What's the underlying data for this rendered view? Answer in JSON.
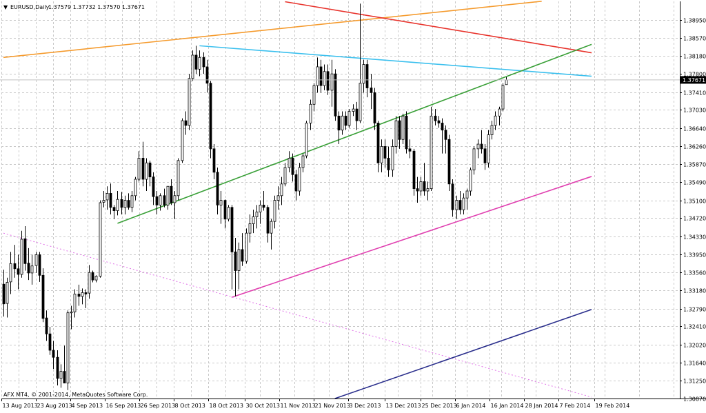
{
  "chart_data": {
    "type": "candlestick",
    "symbol_header": {
      "arrow": "▼",
      "label": "EURUSD,Daily",
      "ohlc": "1.37579 1.37732 1.37570 1.37671"
    },
    "copyright": "AFX MT4, © 2001-2014, MetaQuotes Software Corp.",
    "y_ticks": [
      "1.38950",
      "1.38570",
      "1.38180",
      "1.37800",
      "1.37410",
      "1.37030",
      "1.36640",
      "1.36260",
      "1.35870",
      "1.35490",
      "1.35100",
      "1.34720",
      "1.34330",
      "1.33950",
      "1.33560",
      "1.33180",
      "1.32790",
      "1.32410",
      "1.32020",
      "1.31640",
      "1.31250",
      "1.30870"
    ],
    "current_price_label": "1.37671",
    "current_price": 1.37671,
    "ylim": [
      1.3087,
      1.3934
    ],
    "x_ticks": [
      "13 Aug 2013",
      "23 Aug 2013",
      "4 Sep 2013",
      "16 Sep 2013",
      "26 Sep 2013",
      "8 Oct 2013",
      "18 Oct 2013",
      "30 Oct 2013",
      "11 Nov 2013",
      "21 Nov 2013",
      "3 Dec 2013",
      "13 Dec 2013",
      "25 Dec 2013",
      "6 Jan 2014",
      "16 Jan 2014",
      "28 Jan 2014",
      "7 Feb 2014",
      "19 Feb 2014"
    ],
    "grid": true,
    "colors": {
      "background": "#ffffff",
      "grid": "#c8c8c8",
      "bull_candle": "#ffffff",
      "bear_candle": "#000000",
      "candle_outline": "#000000",
      "orange_trendline": "#f59b2e",
      "red_trendline": "#e8332c",
      "cyan_trendline": "#3cc0ee",
      "green_trendline": "#3aa038",
      "magenta_trendline": "#e040b0",
      "violet_dotted_trendline": "#e070e8",
      "navy_trendline": "#2a2e8c",
      "price_line": "#c0c0c0",
      "price_label_bg": "#000000"
    },
    "trendlines": [
      {
        "name": "orange-trendline",
        "color_key": "orange_trendline",
        "dash": false,
        "from": [
          0,
          1.3815
        ],
        "to": [
          151,
          1.3935
        ]
      },
      {
        "name": "red-trendline",
        "color_key": "red_trendline",
        "dash": false,
        "from": [
          79,
          1.3934
        ],
        "to": [
          165,
          1.3825
        ]
      },
      {
        "name": "cyan-trendline",
        "color_key": "cyan_trendline",
        "dash": false,
        "from": [
          55,
          1.384
        ],
        "to": [
          165,
          1.3775
        ]
      },
      {
        "name": "green-trendline",
        "color_key": "green_trendline",
        "dash": false,
        "from": [
          32,
          1.3461
        ],
        "to": [
          165,
          1.3843
        ]
      },
      {
        "name": "magenta-trendline",
        "color_key": "magenta_trendline",
        "dash": false,
        "from": [
          64,
          1.3303
        ],
        "to": [
          165,
          1.3561
        ]
      },
      {
        "name": "violet-dotted-trendline",
        "color_key": "violet_dotted_trendline",
        "dash": true,
        "from": [
          0,
          1.344
        ],
        "to": [
          165,
          1.309
        ]
      },
      {
        "name": "navy-trendline",
        "color_key": "navy_trendline",
        "dash": false,
        "from": [
          93,
          1.3087
        ],
        "to": [
          165,
          1.3277
        ]
      }
    ],
    "candles": [
      [
        1.3331,
        1.3362,
        1.3262,
        1.3289
      ],
      [
        1.329,
        1.3345,
        1.326,
        1.3335
      ],
      [
        1.3336,
        1.34,
        1.331,
        1.3375
      ],
      [
        1.3375,
        1.3415,
        1.3345,
        1.3364
      ],
      [
        1.3364,
        1.3394,
        1.332,
        1.3352
      ],
      [
        1.3352,
        1.3445,
        1.3345,
        1.3427
      ],
      [
        1.3428,
        1.3455,
        1.336,
        1.3375
      ],
      [
        1.3376,
        1.3408,
        1.334,
        1.3355
      ],
      [
        1.3355,
        1.3394,
        1.333,
        1.337
      ],
      [
        1.3371,
        1.34,
        1.3355,
        1.3394
      ],
      [
        1.3394,
        1.34,
        1.3336,
        1.335
      ],
      [
        1.335,
        1.3365,
        1.325,
        1.3258
      ],
      [
        1.3259,
        1.3275,
        1.321,
        1.3225
      ],
      [
        1.3225,
        1.324,
        1.318,
        1.319
      ],
      [
        1.319,
        1.321,
        1.315,
        1.3175
      ],
      [
        1.3175,
        1.319,
        1.3115,
        1.313
      ],
      [
        1.313,
        1.316,
        1.311,
        1.3145
      ],
      [
        1.3145,
        1.32,
        1.312,
        1.312
      ],
      [
        1.312,
        1.3275,
        1.3105,
        1.327
      ],
      [
        1.327,
        1.3285,
        1.3235,
        1.3272
      ],
      [
        1.3272,
        1.332,
        1.326,
        1.331
      ],
      [
        1.331,
        1.333,
        1.3285,
        1.3305
      ],
      [
        1.3305,
        1.3322,
        1.3288,
        1.3313
      ],
      [
        1.3313,
        1.332,
        1.328,
        1.331
      ],
      [
        1.3312,
        1.3372,
        1.33,
        1.3356
      ],
      [
        1.3356,
        1.336,
        1.3335,
        1.334
      ],
      [
        1.334,
        1.335,
        1.3335,
        1.3348
      ],
      [
        1.3348,
        1.351,
        1.3345,
        1.3505
      ],
      [
        1.3506,
        1.353,
        1.3495,
        1.351
      ],
      [
        1.3511,
        1.354,
        1.349,
        1.3525
      ],
      [
        1.3525,
        1.3546,
        1.348,
        1.3495
      ],
      [
        1.3495,
        1.35,
        1.347,
        1.3488
      ],
      [
        1.3488,
        1.353,
        1.3478,
        1.3512
      ],
      [
        1.3512,
        1.3528,
        1.348,
        1.3495
      ],
      [
        1.3495,
        1.352,
        1.348,
        1.351
      ],
      [
        1.351,
        1.3525,
        1.349,
        1.3495
      ],
      [
        1.3495,
        1.353,
        1.3485,
        1.352
      ],
      [
        1.352,
        1.356,
        1.351,
        1.3555
      ],
      [
        1.3555,
        1.3615,
        1.355,
        1.36
      ],
      [
        1.36,
        1.3635,
        1.354,
        1.3555
      ],
      [
        1.3555,
        1.36,
        1.353,
        1.359
      ],
      [
        1.359,
        1.3595,
        1.354,
        1.356
      ],
      [
        1.356,
        1.357,
        1.35,
        1.3518
      ],
      [
        1.3518,
        1.353,
        1.348,
        1.35
      ],
      [
        1.35,
        1.3525,
        1.3488,
        1.352
      ],
      [
        1.352,
        1.3535,
        1.3495,
        1.35
      ],
      [
        1.35,
        1.354,
        1.349,
        1.354
      ],
      [
        1.354,
        1.3555,
        1.35,
        1.3505
      ],
      [
        1.3505,
        1.353,
        1.347,
        1.352
      ],
      [
        1.352,
        1.36,
        1.351,
        1.3595
      ],
      [
        1.3595,
        1.3685,
        1.359,
        1.368
      ],
      [
        1.368,
        1.37,
        1.365,
        1.367
      ],
      [
        1.367,
        1.378,
        1.366,
        1.377
      ],
      [
        1.377,
        1.383,
        1.3765,
        1.382
      ],
      [
        1.382,
        1.384,
        1.378,
        1.379
      ],
      [
        1.379,
        1.383,
        1.3775,
        1.3815
      ],
      [
        1.3815,
        1.3826,
        1.378,
        1.3795
      ],
      [
        1.3795,
        1.381,
        1.374,
        1.376
      ],
      [
        1.376,
        1.3765,
        1.36,
        1.362
      ],
      [
        1.362,
        1.363,
        1.3555,
        1.357
      ],
      [
        1.357,
        1.358,
        1.348,
        1.35
      ],
      [
        1.35,
        1.353,
        1.346,
        1.351
      ],
      [
        1.351,
        1.3512,
        1.345,
        1.347
      ],
      [
        1.347,
        1.35,
        1.3465,
        1.3495
      ],
      [
        1.3495,
        1.35,
        1.332,
        1.34
      ],
      [
        1.34,
        1.343,
        1.3305,
        1.336
      ],
      [
        1.336,
        1.342,
        1.332,
        1.3405
      ],
      [
        1.3405,
        1.344,
        1.337,
        1.338
      ],
      [
        1.338,
        1.345,
        1.3375,
        1.344
      ],
      [
        1.344,
        1.348,
        1.342,
        1.346
      ],
      [
        1.346,
        1.349,
        1.344,
        1.3475
      ],
      [
        1.3475,
        1.35,
        1.345,
        1.3485
      ],
      [
        1.3485,
        1.351,
        1.346,
        1.35
      ],
      [
        1.35,
        1.353,
        1.3488,
        1.3495
      ],
      [
        1.3495,
        1.35,
        1.342,
        1.344
      ],
      [
        1.344,
        1.347,
        1.3405,
        1.3465
      ],
      [
        1.3465,
        1.352,
        1.345,
        1.351
      ],
      [
        1.351,
        1.354,
        1.349,
        1.352
      ],
      [
        1.352,
        1.356,
        1.35,
        1.3545
      ],
      [
        1.3545,
        1.359,
        1.354,
        1.358
      ],
      [
        1.358,
        1.3615,
        1.357,
        1.36
      ],
      [
        1.36,
        1.361,
        1.355,
        1.3565
      ],
      [
        1.3565,
        1.3575,
        1.351,
        1.353
      ],
      [
        1.353,
        1.359,
        1.352,
        1.358
      ],
      [
        1.358,
        1.361,
        1.357,
        1.3605
      ],
      [
        1.3605,
        1.368,
        1.36,
        1.3675
      ],
      [
        1.3675,
        1.3725,
        1.366,
        1.3715
      ],
      [
        1.3715,
        1.376,
        1.37,
        1.3755
      ],
      [
        1.3755,
        1.3815,
        1.374,
        1.3795
      ],
      [
        1.3795,
        1.381,
        1.374,
        1.3755
      ],
      [
        1.3755,
        1.38,
        1.3745,
        1.3785
      ],
      [
        1.3785,
        1.38,
        1.3735,
        1.3745
      ],
      [
        1.3745,
        1.381,
        1.371,
        1.378
      ],
      [
        1.378,
        1.379,
        1.368,
        1.369
      ],
      [
        1.369,
        1.37,
        1.363,
        1.366
      ],
      [
        1.366,
        1.37,
        1.365,
        1.369
      ],
      [
        1.369,
        1.37,
        1.366,
        1.367
      ],
      [
        1.367,
        1.3705,
        1.3665,
        1.37
      ],
      [
        1.37,
        1.3715,
        1.369,
        1.3705
      ],
      [
        1.3705,
        1.372,
        1.366,
        1.368
      ],
      [
        1.368,
        1.393,
        1.3675,
        1.376
      ],
      [
        1.376,
        1.381,
        1.374,
        1.38
      ],
      [
        1.38,
        1.381,
        1.373,
        1.375
      ],
      [
        1.375,
        1.378,
        1.3705,
        1.374
      ],
      [
        1.374,
        1.375,
        1.366,
        1.3675
      ],
      [
        1.3675,
        1.368,
        1.357,
        1.359
      ],
      [
        1.359,
        1.364,
        1.357,
        1.3625
      ],
      [
        1.3625,
        1.364,
        1.358,
        1.36
      ],
      [
        1.36,
        1.3625,
        1.356,
        1.3575
      ],
      [
        1.3575,
        1.364,
        1.356,
        1.3625
      ],
      [
        1.3625,
        1.369,
        1.361,
        1.368
      ],
      [
        1.368,
        1.369,
        1.362,
        1.364
      ],
      [
        1.364,
        1.3695,
        1.363,
        1.369
      ],
      [
        1.369,
        1.37,
        1.361,
        1.362
      ],
      [
        1.362,
        1.364,
        1.36,
        1.3615
      ],
      [
        1.3615,
        1.362,
        1.352,
        1.3535
      ],
      [
        1.3535,
        1.356,
        1.3505,
        1.353
      ],
      [
        1.353,
        1.356,
        1.352,
        1.355
      ],
      [
        1.355,
        1.359,
        1.352,
        1.353
      ],
      [
        1.353,
        1.355,
        1.351,
        1.3535
      ],
      [
        1.3535,
        1.371,
        1.353,
        1.369
      ],
      [
        1.369,
        1.3705,
        1.367,
        1.368
      ],
      [
        1.368,
        1.369,
        1.3665,
        1.3675
      ],
      [
        1.3675,
        1.3685,
        1.361,
        1.366
      ],
      [
        1.366,
        1.367,
        1.361,
        1.364
      ],
      [
        1.364,
        1.365,
        1.353,
        1.3545
      ],
      [
        1.3545,
        1.3555,
        1.3475,
        1.349
      ],
      [
        1.349,
        1.352,
        1.347,
        1.351
      ],
      [
        1.351,
        1.353,
        1.348,
        1.349
      ],
      [
        1.349,
        1.3525,
        1.348,
        1.3515
      ],
      [
        1.3515,
        1.3535,
        1.349,
        1.353
      ],
      [
        1.353,
        1.358,
        1.352,
        1.3575
      ],
      [
        1.3575,
        1.3625,
        1.3565,
        1.362
      ],
      [
        1.362,
        1.364,
        1.36,
        1.363
      ],
      [
        1.363,
        1.366,
        1.361,
        1.362
      ],
      [
        1.362,
        1.363,
        1.3575,
        1.359
      ],
      [
        1.359,
        1.366,
        1.358,
        1.365
      ],
      [
        1.365,
        1.368,
        1.364,
        1.367
      ],
      [
        1.367,
        1.37,
        1.366,
        1.369
      ],
      [
        1.369,
        1.371,
        1.367,
        1.3705
      ],
      [
        1.3705,
        1.376,
        1.37,
        1.3755
      ],
      [
        1.3757,
        1.3773,
        1.3757,
        1.3767
      ]
    ]
  }
}
